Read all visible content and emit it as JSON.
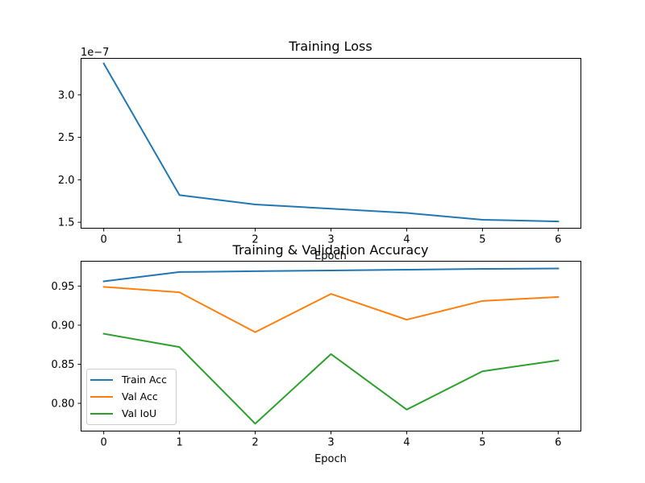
{
  "chart_data": [
    {
      "type": "line",
      "title": "Training Loss",
      "xlabel": "Epoch",
      "ylabel": "",
      "offset_text": "1e−7",
      "x": [
        0,
        1,
        2,
        3,
        4,
        5,
        6
      ],
      "xlim": [
        -0.3,
        6.3
      ],
      "ylim": [
        1.43,
        3.43
      ],
      "yticks": [
        1.5,
        2.0,
        2.5,
        3.0
      ],
      "ytick_labels": [
        "1.5",
        "2.0",
        "2.5",
        "3.0"
      ],
      "series": [
        {
          "values": [
            3.37,
            1.82,
            1.71,
            1.66,
            1.61,
            1.53,
            1.51
          ],
          "color": "#1f77b4"
        }
      ],
      "grid": false
    },
    {
      "type": "line",
      "title": "Training & Validation Accuracy",
      "xlabel": "Epoch",
      "ylabel": "",
      "x": [
        0,
        1,
        2,
        3,
        4,
        5,
        6
      ],
      "xlim": [
        -0.3,
        6.3
      ],
      "ylim": [
        0.7645,
        0.9818
      ],
      "yticks": [
        0.8,
        0.85,
        0.9,
        0.95
      ],
      "ytick_labels": [
        "0.80",
        "0.85",
        "0.90",
        "0.95"
      ],
      "legend_position": "lower-left",
      "series": [
        {
          "name": "Train Acc",
          "values": [
            0.956,
            0.968,
            0.969,
            0.97,
            0.971,
            0.972,
            0.9725
          ],
          "color": "#1f77b4"
        },
        {
          "name": "Val Acc",
          "values": [
            0.949,
            0.942,
            0.891,
            0.94,
            0.907,
            0.931,
            0.936
          ],
          "color": "#ff7f0e"
        },
        {
          "name": "Val IoU",
          "values": [
            0.889,
            0.872,
            0.774,
            0.863,
            0.792,
            0.841,
            0.855
          ],
          "color": "#2ca02c"
        }
      ],
      "grid": false
    }
  ]
}
